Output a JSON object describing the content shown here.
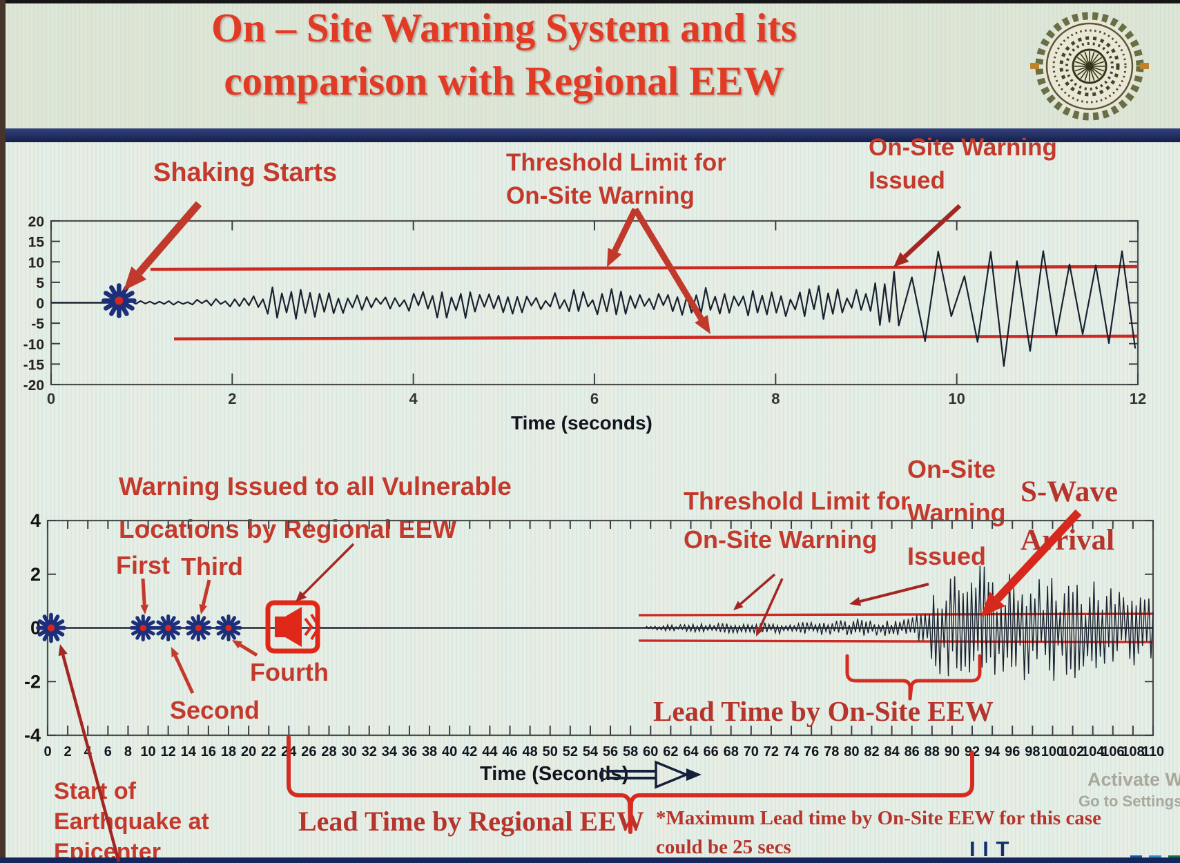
{
  "slide": {
    "title_line1": "On – Site Warning System and its",
    "title_line2": "comparison with Regional EEW",
    "logo": "iit-roorkee-emblem"
  },
  "labels": {
    "shaking_starts": "Shaking Starts",
    "threshold_top_line1": "Threshold Limit for",
    "threshold_top_line2": "On-Site Warning",
    "onsite_top_line1": "On-Site Warning",
    "onsite_top_line2": "Issued",
    "time_seconds_top": "Time (seconds)",
    "vulnerable_line1": "Warning Issued to all Vulnerable",
    "vulnerable_line2": "Locations by Regional EEW",
    "first": "First",
    "second": "Second",
    "third": "Third",
    "fourth": "Fourth",
    "threshold_bottom_line1": "Threshold Limit for",
    "threshold_bottom_line2": "On-Site Warning",
    "onsite_bottom_line1": "On-Site",
    "onsite_bottom_line2": "Warning",
    "onsite_bottom_line3": "Issued",
    "swave_line1": "S-Wave",
    "swave_line2": "Arrival",
    "lead_time_onsite": "Lead Time by On-Site EEW",
    "lead_time_regional": "Lead Time by Regional EEW",
    "start_line1": "Start of",
    "start_line2": "Earthquake at",
    "start_line3": "Epicenter",
    "time_seconds_bottom": "Time (Seconds)",
    "note_line1": "*Maximum Lead time by On-Site EEW for this case",
    "note_line2": "could be 25 secs",
    "brand": "I I T ROORKEE",
    "watermark_line1": "Activate Wi",
    "watermark_line2": "Go to Settings"
  },
  "colors": {
    "title_red": "#e13a25",
    "annotation_red": "#c33a2d",
    "serif_red": "#b5342c",
    "deep_red": "#a32622",
    "bright_red": "#d6281c",
    "threshold_red": "#cc2a22",
    "brace_red": "#d62b20",
    "waveform_ink": "#19212f",
    "axis_ink": "#4d4d4d",
    "tick_ink": "#3c3c44",
    "marker_blue": "#1d2f7a",
    "marker_center_red": "#d4281e",
    "speaker_red": "#e02818",
    "navy_bar": "#1d2a5c",
    "brand_navy": "#16306e",
    "brand_blue": "#1456a8",
    "brand_lightblue": "#2f8cc8",
    "brand_green": "#176e3e",
    "watermark_gray": "#a8a89c",
    "logo_olive": "#6a6e45",
    "time_arrow_ink": "#14203c"
  },
  "chart_data": [
    {
      "id": "onsite-accelerogram",
      "type": "line",
      "title": "",
      "xlabel": "Time (seconds)",
      "ylabel": "",
      "xlim": [
        0,
        12
      ],
      "ylim": [
        -20,
        20
      ],
      "xticks": [
        0,
        2,
        4,
        6,
        8,
        10,
        12
      ],
      "yticks": [
        20,
        15,
        10,
        5,
        0,
        -5,
        -10,
        -15,
        -20
      ],
      "grid": false,
      "threshold_upper": 8.5,
      "threshold_lower": -8.5,
      "shaking_start_t": 0.75,
      "onsite_warning_issued_t": 9.2,
      "annotations": [
        "Shaking Starts",
        "Threshold Limit for On-Site Warning",
        "On-Site Warning Issued"
      ],
      "amplitude_envelope": [
        [
          0.75,
          0.4
        ],
        [
          1.3,
          0.5
        ],
        [
          1.8,
          0.9
        ],
        [
          2.2,
          1.5
        ],
        [
          2.45,
          3.9
        ],
        [
          2.65,
          4.6
        ],
        [
          2.85,
          4.2
        ],
        [
          3.1,
          3.0
        ],
        [
          3.4,
          2.2
        ],
        [
          3.7,
          2.6
        ],
        [
          3.95,
          2.1
        ],
        [
          4.15,
          3.4
        ],
        [
          4.4,
          4.8
        ],
        [
          4.65,
          3.3
        ],
        [
          4.9,
          2.5
        ],
        [
          5.2,
          2.9
        ],
        [
          5.5,
          2.4
        ],
        [
          5.8,
          3.4
        ],
        [
          6.1,
          4.2
        ],
        [
          6.35,
          3.0
        ],
        [
          6.6,
          2.6
        ],
        [
          6.9,
          3.2
        ],
        [
          7.2,
          4.1
        ],
        [
          7.5,
          2.9
        ],
        [
          7.8,
          3.3
        ],
        [
          8.1,
          3.6
        ],
        [
          8.4,
          4.5
        ],
        [
          8.7,
          3.4
        ],
        [
          8.95,
          4.3
        ],
        [
          9.15,
          6.8
        ],
        [
          9.3,
          9.6
        ],
        [
          9.45,
          6.5
        ],
        [
          9.6,
          8.2
        ],
        [
          9.75,
          12.5
        ],
        [
          9.9,
          14.5
        ],
        [
          10.05,
          8.5
        ],
        [
          10.2,
          12.0
        ],
        [
          10.35,
          15.5
        ],
        [
          10.5,
          16.5
        ],
        [
          10.65,
          11.0
        ],
        [
          10.8,
          13.0
        ],
        [
          10.95,
          16.8
        ],
        [
          11.1,
          12.5
        ],
        [
          11.25,
          9.5
        ],
        [
          11.4,
          13.5
        ],
        [
          11.55,
          15.0
        ],
        [
          11.7,
          11.0
        ],
        [
          11.85,
          14.2
        ],
        [
          12.0,
          12.0
        ]
      ]
    },
    {
      "id": "regional-vs-onsite-seismogram",
      "type": "line",
      "title": "",
      "xlabel": "Time (Seconds)",
      "ylabel": "",
      "xlim": [
        0,
        110
      ],
      "ylim": [
        -4,
        4
      ],
      "xticks": [
        0,
        2,
        4,
        6,
        8,
        10,
        12,
        14,
        16,
        18,
        20,
        22,
        24,
        26,
        28,
        30,
        32,
        34,
        36,
        38,
        40,
        42,
        44,
        46,
        48,
        50,
        52,
        54,
        56,
        58,
        60,
        62,
        64,
        66,
        68,
        70,
        72,
        74,
        76,
        78,
        80,
        82,
        84,
        86,
        88,
        90,
        92,
        94,
        96,
        98,
        100,
        102,
        104,
        106,
        108,
        110
      ],
      "yticks": [
        4,
        2,
        0,
        -2,
        -4
      ],
      "grid": false,
      "threshold_upper": 0.5,
      "threshold_lower": -0.5,
      "epicenter_start_t": 0,
      "regional_detection_markers": [
        {
          "name": "First",
          "t": 9.5
        },
        {
          "name": "Second",
          "t": 12
        },
        {
          "name": "Third",
          "t": 15
        },
        {
          "name": "Fourth",
          "t": 18
        }
      ],
      "regional_warning_issued_t": 25,
      "p_wave_onset_t": 59.5,
      "s_wave_arrival_t": 93,
      "lead_time_regional_span_s": [
        24,
        92
      ],
      "lead_time_onsite_span_s": [
        79.5,
        92.7
      ],
      "max_onsite_lead_time_note_s": 25,
      "annotations": [
        "Warning Issued to all Vulnerable Locations by Regional EEW",
        "Threshold Limit for On-Site Warning",
        "On-Site Warning Issued",
        "S-Wave Arrival",
        "Lead Time by On-Site EEW",
        "Lead Time by Regional EEW",
        "Start of Earthquake at Epicenter"
      ],
      "amplitude_envelope": [
        [
          59.5,
          0.05
        ],
        [
          61,
          0.1
        ],
        [
          63,
          0.15
        ],
        [
          65,
          0.17
        ],
        [
          67,
          0.2
        ],
        [
          69,
          0.22
        ],
        [
          71,
          0.2
        ],
        [
          73,
          0.22
        ],
        [
          75,
          0.24
        ],
        [
          77,
          0.26
        ],
        [
          79,
          0.28
        ],
        [
          81,
          0.3
        ],
        [
          83,
          0.3
        ],
        [
          85,
          0.34
        ],
        [
          86.5,
          0.45
        ],
        [
          87.5,
          0.8
        ],
        [
          88.5,
          1.6
        ],
        [
          89.5,
          2.3
        ],
        [
          90.5,
          2.6
        ],
        [
          91.5,
          1.9
        ],
        [
          92.5,
          2.3
        ],
        [
          93.2,
          2.8
        ],
        [
          94,
          2.3
        ],
        [
          95,
          1.7
        ],
        [
          96,
          2.4
        ],
        [
          97,
          1.9
        ],
        [
          98,
          2.3
        ],
        [
          99,
          1.6
        ],
        [
          100,
          2.1
        ],
        [
          101,
          1.7
        ],
        [
          102,
          2.0
        ],
        [
          103,
          1.5
        ],
        [
          104,
          1.8
        ],
        [
          105,
          1.35
        ],
        [
          106,
          1.6
        ],
        [
          107,
          1.25
        ],
        [
          108,
          1.45
        ],
        [
          109,
          1.15
        ],
        [
          110,
          1.3
        ]
      ]
    }
  ]
}
